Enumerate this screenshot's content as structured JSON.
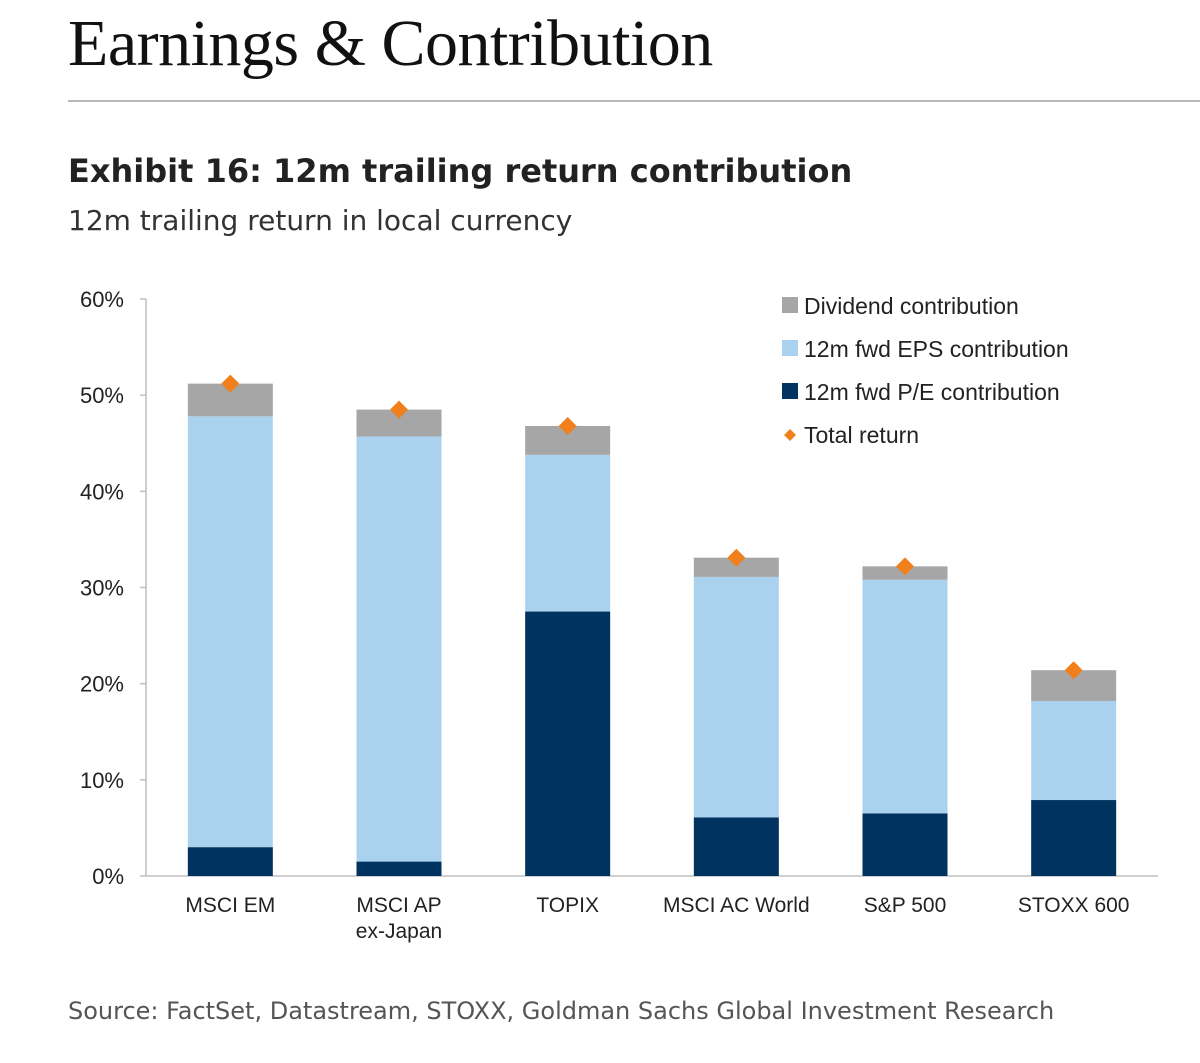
{
  "page": {
    "title": "Earnings & Contribution"
  },
  "exhibit": {
    "title": "Exhibit 16: 12m trailing return contribution",
    "subtitle": "12m trailing return in local currency",
    "source": "Source: FactSet, Datastream, STOXX, Goldman Sachs Global Investment Research"
  },
  "chart_data": {
    "type": "bar",
    "stacked": true,
    "categories": [
      [
        "MSCI EM"
      ],
      [
        "MSCI AP",
        "ex-Japan"
      ],
      [
        "TOPIX"
      ],
      [
        "MSCI AC World"
      ],
      [
        "S&P 500"
      ],
      [
        "STOXX 600"
      ]
    ],
    "series": [
      {
        "name": "12m fwd P/E contribution",
        "color": "#003360",
        "values": [
          3.0,
          1.5,
          27.5,
          6.1,
          6.5,
          7.9
        ]
      },
      {
        "name": "12m fwd EPS contribution",
        "color": "#aad2ef",
        "values": [
          44.8,
          44.2,
          16.3,
          25.0,
          24.3,
          10.3
        ]
      },
      {
        "name": "Dividend contribution",
        "color": "#a6a6a6",
        "values": [
          3.4,
          2.8,
          3.0,
          2.0,
          1.4,
          3.2
        ]
      }
    ],
    "markers": {
      "name": "Total return",
      "color": "#f07f1c",
      "values": [
        51.2,
        48.5,
        46.8,
        33.1,
        32.2,
        21.4
      ]
    },
    "ylim": [
      0,
      60
    ],
    "y_ticks": [
      "0%",
      "10%",
      "20%",
      "30%",
      "40%",
      "50%",
      "60%"
    ],
    "legend_order": [
      "Dividend contribution",
      "12m fwd EPS contribution",
      "12m fwd P/E contribution",
      "Total return"
    ],
    "legend_position": "top-right",
    "grid": false
  }
}
